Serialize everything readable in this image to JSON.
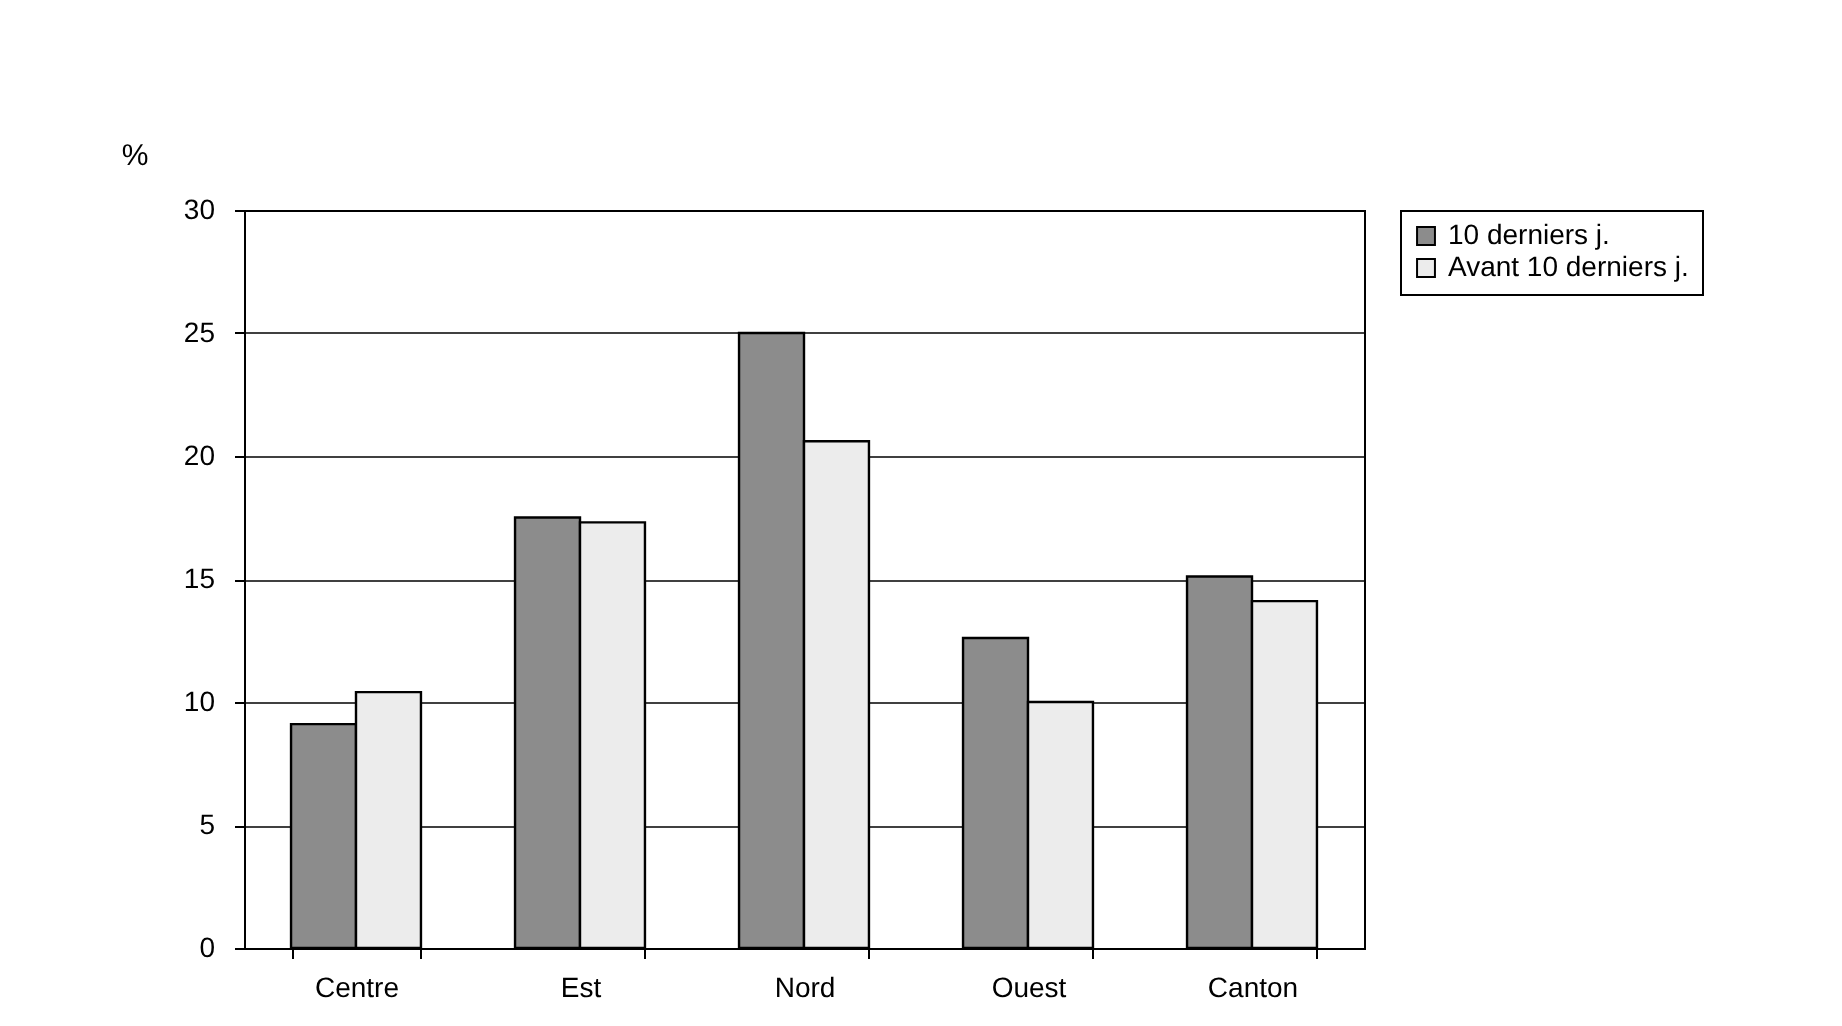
{
  "chart_data": {
    "type": "bar",
    "categories": [
      "Centre",
      "Est",
      "Nord",
      "Ouest",
      "Canton"
    ],
    "series": [
      {
        "name": "10 derniers j.",
        "color": "#8c8c8c",
        "values": [
          9.1,
          17.5,
          25.0,
          12.6,
          15.1
        ]
      },
      {
        "name": "Avant 10 derniers j.",
        "color": "#ececec",
        "values": [
          10.4,
          17.3,
          20.6,
          10.0,
          14.1
        ]
      }
    ],
    "ylabel": "%",
    "ylim": [
      0,
      30
    ],
    "yticks": [
      0,
      5,
      10,
      15,
      20,
      25,
      30
    ],
    "grid": "y",
    "legend": "right"
  }
}
